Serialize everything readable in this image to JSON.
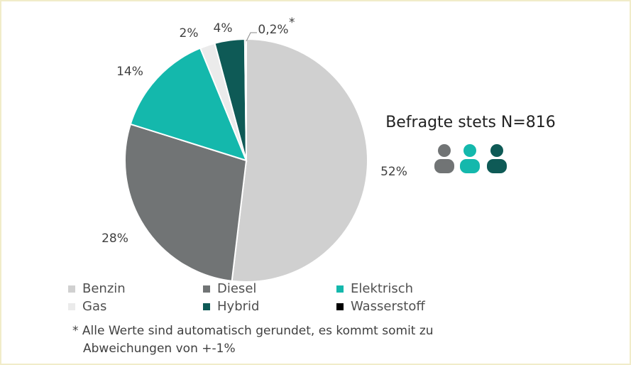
{
  "chart_data": {
    "type": "pie",
    "categories": [
      "Benzin",
      "Diesel",
      "Elektrisch",
      "Gas",
      "Hybrid",
      "Wasserstoff"
    ],
    "values": [
      52,
      28,
      14,
      2,
      4,
      0.2
    ],
    "value_labels": [
      "52%",
      "28%",
      "14%",
      "2%",
      "4%",
      "0,2%"
    ],
    "label_marker": "*",
    "colors": [
      "#d0d0d0",
      "#717475",
      "#14b8ac",
      "#ebebeb",
      "#0e5a56",
      "#000000"
    ],
    "annotation": "Befragte stets N=816",
    "footnote": [
      "* Alle Werte sind automatisch gerundet, es kommt somit zu",
      "Abweichungen von +-1%"
    ]
  }
}
